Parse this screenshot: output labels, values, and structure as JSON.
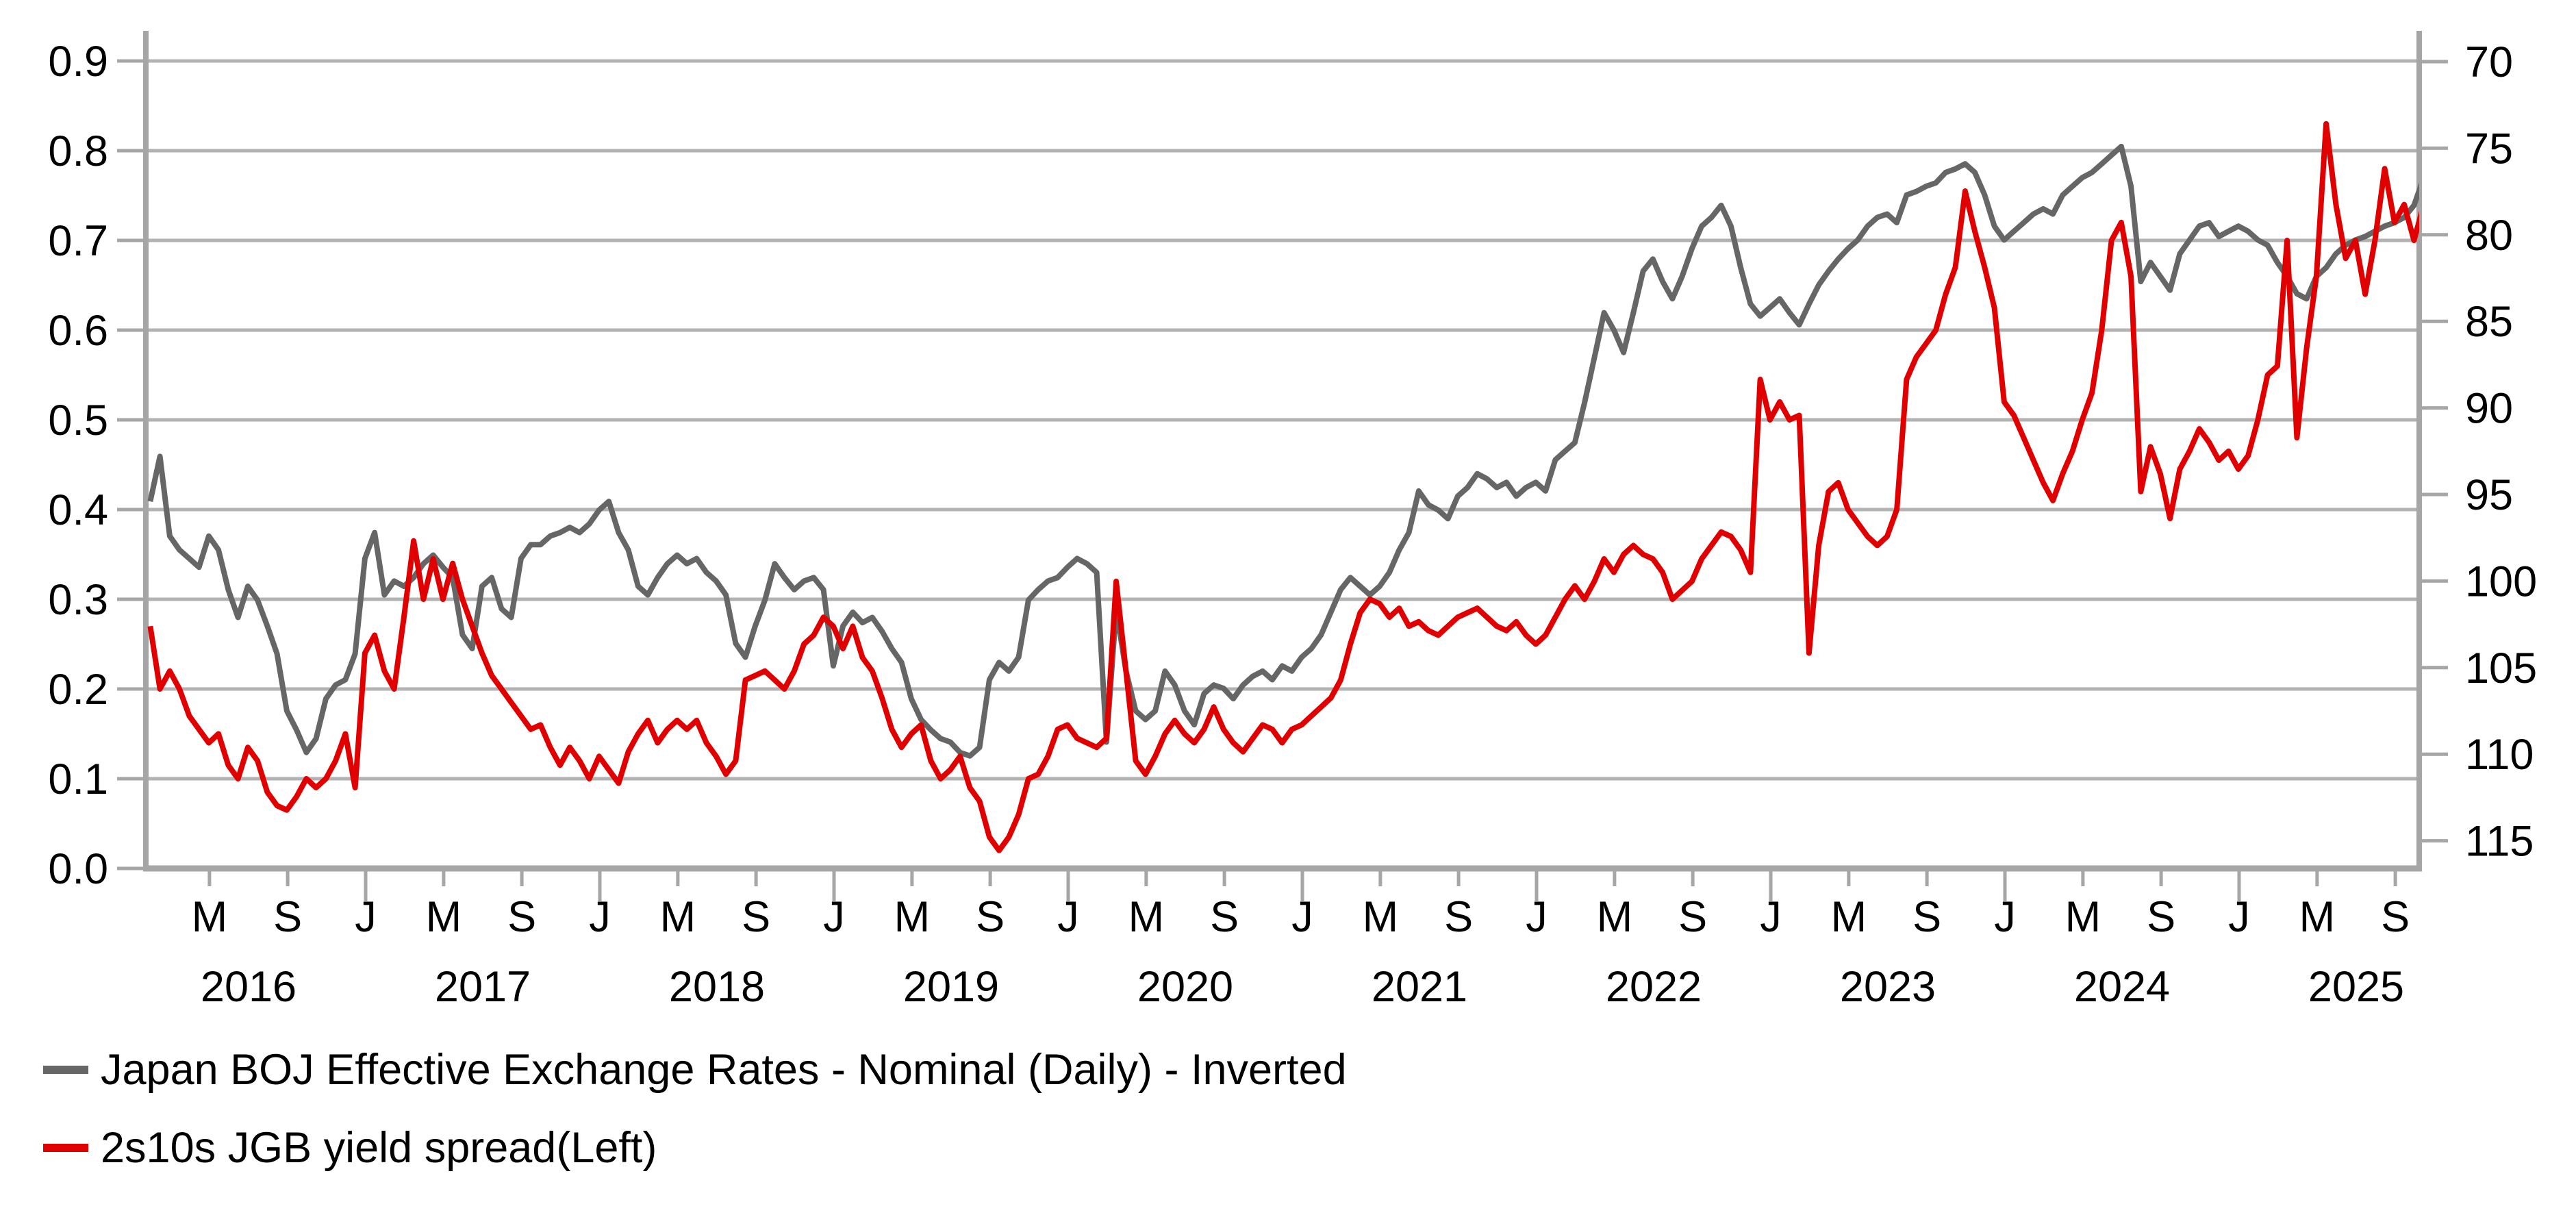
{
  "chart_data": {
    "type": "line",
    "title": "",
    "grid": "horizontal",
    "legend_position": "bottom-left",
    "left_axis": {
      "min": 0.0,
      "max": 0.9,
      "tick_labels": [
        "0.9",
        "0.8",
        "0.7",
        "0.6",
        "0.5",
        "0.4",
        "0.3",
        "0.2",
        "0.1",
        "0.0"
      ]
    },
    "right_axis": {
      "inverted": true,
      "tick_labels": [
        "70",
        "75",
        "80",
        "85",
        "90",
        "95",
        "100",
        "105",
        "110",
        "115"
      ]
    },
    "x_axis": {
      "start_year": 2016,
      "end_year": 2025,
      "month_labels": [
        {
          "t": 2016.333,
          "label": "M",
          "major": false
        },
        {
          "t": 2016.667,
          "label": "S",
          "major": false
        },
        {
          "t": 2017.0,
          "label": "J",
          "major": true
        },
        {
          "t": 2017.333,
          "label": "M",
          "major": false
        },
        {
          "t": 2017.667,
          "label": "S",
          "major": false
        },
        {
          "t": 2018.0,
          "label": "J",
          "major": true
        },
        {
          "t": 2018.333,
          "label": "M",
          "major": false
        },
        {
          "t": 2018.667,
          "label": "S",
          "major": false
        },
        {
          "t": 2019.0,
          "label": "J",
          "major": true
        },
        {
          "t": 2019.333,
          "label": "M",
          "major": false
        },
        {
          "t": 2019.667,
          "label": "S",
          "major": false
        },
        {
          "t": 2020.0,
          "label": "J",
          "major": true
        },
        {
          "t": 2020.333,
          "label": "M",
          "major": false
        },
        {
          "t": 2020.667,
          "label": "S",
          "major": false
        },
        {
          "t": 2021.0,
          "label": "J",
          "major": true
        },
        {
          "t": 2021.333,
          "label": "M",
          "major": false
        },
        {
          "t": 2021.667,
          "label": "S",
          "major": false
        },
        {
          "t": 2022.0,
          "label": "J",
          "major": true
        },
        {
          "t": 2022.333,
          "label": "M",
          "major": false
        },
        {
          "t": 2022.667,
          "label": "S",
          "major": false
        },
        {
          "t": 2023.0,
          "label": "J",
          "major": true
        },
        {
          "t": 2023.333,
          "label": "M",
          "major": false
        },
        {
          "t": 2023.667,
          "label": "S",
          "major": false
        },
        {
          "t": 2024.0,
          "label": "J",
          "major": true
        },
        {
          "t": 2024.333,
          "label": "M",
          "major": false
        },
        {
          "t": 2024.667,
          "label": "S",
          "major": false
        },
        {
          "t": 2025.0,
          "label": "J",
          "major": true
        },
        {
          "t": 2025.333,
          "label": "M",
          "major": false
        },
        {
          "t": 2025.667,
          "label": "S",
          "major": false
        }
      ],
      "year_labels": [
        {
          "t": 2016.5,
          "label": "2016"
        },
        {
          "t": 2017.5,
          "label": "2017"
        },
        {
          "t": 2018.5,
          "label": "2018"
        },
        {
          "t": 2019.5,
          "label": "2019"
        },
        {
          "t": 2020.5,
          "label": "2020"
        },
        {
          "t": 2021.5,
          "label": "2021"
        },
        {
          "t": 2022.5,
          "label": "2022"
        },
        {
          "t": 2023.5,
          "label": "2023"
        },
        {
          "t": 2024.5,
          "label": "2024"
        },
        {
          "t": 2025.5,
          "label": "2025"
        }
      ]
    },
    "series": [
      {
        "name": "Japan BOJ Effective Exchange Rates - Nominal (Daily) - Inverted",
        "axis": "right",
        "color": "#666666",
        "x_start": 2016.08,
        "x_step": 0.0416667,
        "values": [
          95.4,
          92.8,
          97.4,
          98.2,
          98.7,
          99.2,
          97.4,
          98.2,
          100.5,
          102.1,
          100.3,
          101.1,
          102.6,
          104.2,
          107.5,
          108.6,
          109.9,
          109.1,
          106.8,
          106.0,
          105.7,
          104.2,
          98.7,
          97.2,
          100.8,
          100.0,
          100.3,
          99.8,
          99.0,
          98.5,
          99.2,
          99.8,
          103.1,
          103.9,
          100.3,
          99.8,
          101.6,
          102.1,
          98.7,
          97.9,
          97.9,
          97.4,
          97.2,
          96.9,
          97.2,
          96.7,
          95.9,
          95.4,
          97.2,
          98.2,
          100.3,
          100.8,
          99.8,
          99.0,
          98.5,
          99.0,
          98.7,
          99.5,
          100.0,
          100.8,
          103.6,
          104.4,
          102.6,
          101.1,
          99.0,
          99.8,
          100.5,
          100.0,
          99.8,
          100.5,
          104.9,
          102.6,
          101.8,
          102.4,
          102.1,
          102.9,
          103.9,
          104.7,
          106.8,
          108.0,
          108.6,
          109.1,
          109.3,
          109.9,
          110.1,
          109.6,
          105.7,
          104.7,
          105.2,
          104.4,
          101.1,
          100.5,
          100.0,
          99.8,
          99.2,
          98.7,
          99.0,
          99.5,
          109.3,
          101.6,
          105.2,
          107.5,
          108.0,
          107.5,
          105.2,
          106.0,
          107.5,
          108.3,
          106.5,
          106.0,
          106.2,
          106.8,
          106.0,
          105.5,
          105.2,
          105.7,
          104.9,
          105.2,
          104.4,
          103.9,
          103.1,
          101.8,
          100.5,
          99.8,
          100.3,
          100.8,
          100.3,
          99.5,
          98.2,
          97.2,
          94.8,
          95.6,
          95.9,
          96.4,
          95.1,
          94.6,
          93.8,
          94.1,
          94.6,
          94.3,
          95.1,
          94.6,
          94.3,
          94.8,
          93.0,
          92.5,
          92.0,
          89.7,
          87.1,
          84.5,
          85.5,
          86.8,
          84.5,
          82.1,
          81.4,
          82.7,
          83.7,
          82.4,
          80.8,
          79.5,
          79.0,
          78.3,
          79.5,
          81.9,
          84.0,
          84.7,
          84.2,
          83.7,
          84.5,
          85.2,
          84.0,
          82.9,
          82.1,
          81.4,
          80.8,
          80.3,
          79.5,
          79.0,
          78.8,
          79.3,
          77.7,
          77.5,
          77.2,
          77.0,
          76.4,
          76.2,
          75.9,
          76.4,
          77.7,
          79.5,
          80.3,
          79.8,
          79.3,
          78.8,
          78.5,
          78.8,
          77.7,
          77.2,
          76.7,
          76.4,
          75.9,
          75.4,
          74.9,
          77.2,
          82.7,
          81.6,
          82.4,
          83.2,
          81.1,
          80.3,
          79.5,
          79.3,
          80.1,
          79.8,
          79.5,
          79.8,
          80.3,
          80.6,
          81.6,
          82.4,
          83.4,
          83.7,
          82.4,
          81.9,
          81.1,
          80.6,
          80.3,
          80.1,
          79.8,
          79.5,
          79.3,
          79.0,
          78.3,
          76.7
        ]
      },
      {
        "name": "2s10s JGB yield spread(Left)",
        "axis": "left",
        "color": "#e10000",
        "x_start": 2016.08,
        "x_step": 0.0416667,
        "values": [
          0.27,
          0.2,
          0.22,
          0.2,
          0.17,
          0.155,
          0.14,
          0.15,
          0.115,
          0.1,
          0.135,
          0.12,
          0.085,
          0.07,
          0.065,
          0.08,
          0.1,
          0.09,
          0.1,
          0.12,
          0.15,
          0.09,
          0.24,
          0.26,
          0.22,
          0.2,
          0.28,
          0.365,
          0.3,
          0.345,
          0.3,
          0.34,
          0.3,
          0.27,
          0.24,
          0.215,
          0.2,
          0.185,
          0.17,
          0.155,
          0.16,
          0.135,
          0.115,
          0.135,
          0.12,
          0.1,
          0.125,
          0.11,
          0.095,
          0.13,
          0.15,
          0.165,
          0.14,
          0.155,
          0.165,
          0.155,
          0.165,
          0.14,
          0.125,
          0.105,
          0.12,
          0.21,
          0.215,
          0.22,
          0.21,
          0.2,
          0.22,
          0.25,
          0.26,
          0.28,
          0.27,
          0.245,
          0.27,
          0.235,
          0.22,
          0.19,
          0.155,
          0.135,
          0.15,
          0.16,
          0.12,
          0.1,
          0.11,
          0.125,
          0.09,
          0.075,
          0.035,
          0.02,
          0.035,
          0.06,
          0.1,
          0.105,
          0.125,
          0.155,
          0.16,
          0.145,
          0.14,
          0.135,
          0.145,
          0.32,
          0.22,
          0.12,
          0.105,
          0.125,
          0.15,
          0.165,
          0.15,
          0.14,
          0.155,
          0.18,
          0.155,
          0.14,
          0.13,
          0.145,
          0.16,
          0.155,
          0.14,
          0.155,
          0.16,
          0.17,
          0.18,
          0.19,
          0.21,
          0.25,
          0.285,
          0.3,
          0.295,
          0.28,
          0.29,
          0.27,
          0.275,
          0.265,
          0.26,
          0.27,
          0.28,
          0.285,
          0.29,
          0.28,
          0.27,
          0.265,
          0.275,
          0.26,
          0.25,
          0.26,
          0.28,
          0.3,
          0.315,
          0.3,
          0.32,
          0.345,
          0.33,
          0.35,
          0.36,
          0.35,
          0.345,
          0.33,
          0.3,
          0.31,
          0.32,
          0.345,
          0.36,
          0.375,
          0.37,
          0.355,
          0.33,
          0.545,
          0.5,
          0.52,
          0.5,
          0.505,
          0.24,
          0.36,
          0.42,
          0.43,
          0.4,
          0.385,
          0.37,
          0.36,
          0.37,
          0.4,
          0.545,
          0.57,
          0.585,
          0.6,
          0.64,
          0.67,
          0.755,
          0.71,
          0.67,
          0.625,
          0.52,
          0.505,
          0.48,
          0.455,
          0.43,
          0.41,
          0.44,
          0.465,
          0.5,
          0.53,
          0.6,
          0.7,
          0.72,
          0.66,
          0.42,
          0.47,
          0.44,
          0.39,
          0.445,
          0.465,
          0.49,
          0.475,
          0.455,
          0.465,
          0.445,
          0.46,
          0.5,
          0.55,
          0.56,
          0.7,
          0.48,
          0.58,
          0.66,
          0.83,
          0.74,
          0.68,
          0.7,
          0.64,
          0.7,
          0.78,
          0.72,
          0.74,
          0.7,
          0.74
        ]
      }
    ],
    "colors": {
      "gridline": "#b2b2b2",
      "axis": "#a6a6a6",
      "label_text": "#000000"
    }
  },
  "legend": {
    "items": [
      {
        "label": "Japan BOJ Effective Exchange Rates - Nominal (Daily) - Inverted",
        "color": "#666666"
      },
      {
        "label": "2s10s JGB yield spread(Left)",
        "color": "#e10000"
      }
    ]
  }
}
